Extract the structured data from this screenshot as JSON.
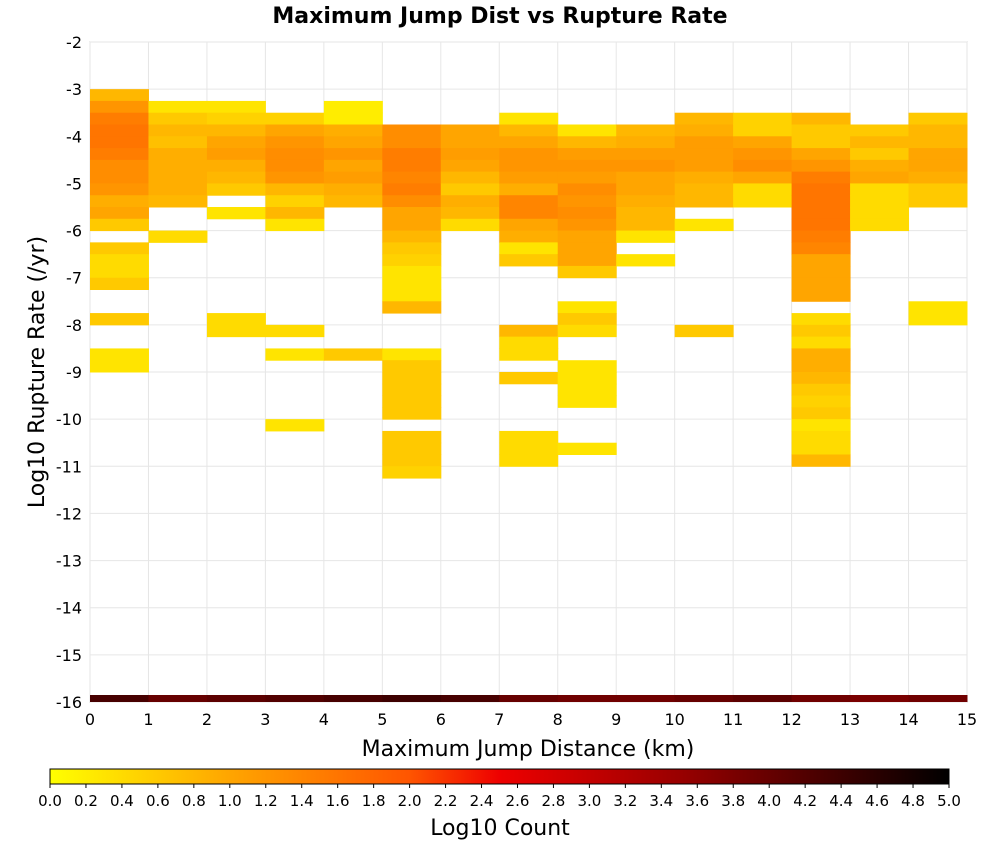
{
  "chart_data": {
    "type": "heatmap",
    "title": "Maximum Jump Dist vs Rupture Rate",
    "xlabel": "Maximum Jump Distance (km)",
    "ylabel": "Log10 Rupture Rate (/yr)",
    "xlim": [
      0,
      15
    ],
    "ylim": [
      -16,
      -2
    ],
    "x_ticks": [
      "0",
      "1",
      "2",
      "3",
      "4",
      "5",
      "6",
      "7",
      "8",
      "9",
      "10",
      "11",
      "12",
      "13",
      "14",
      "15"
    ],
    "y_ticks": [
      "-2",
      "-3",
      "-4",
      "-5",
      "-6",
      "-7",
      "-8",
      "-9",
      "-10",
      "-11",
      "-12",
      "-13",
      "-14",
      "-15",
      "-16"
    ],
    "grid": true,
    "bin_width_x": 1,
    "bin_height_y": 0.25,
    "colorbar": {
      "label": "Log10 Count",
      "range": [
        0,
        5
      ],
      "ticks": [
        "0.0",
        "0.2",
        "0.4",
        "0.6",
        "0.8",
        "1.0",
        "1.2",
        "1.4",
        "1.6",
        "1.8",
        "2.0",
        "2.2",
        "2.4",
        "2.6",
        "2.8",
        "3.0",
        "3.2",
        "3.4",
        "3.6",
        "3.8",
        "4.0",
        "4.2",
        "4.4",
        "4.6",
        "4.8",
        "5.0"
      ],
      "colors": [
        "#ffff00",
        "#ffa500",
        "#ff6600",
        "#ee0000",
        "#990000",
        "#000000"
      ]
    },
    "columns": [
      {
        "x": 0,
        "y_start": -3.0,
        "values": [
          0.8,
          1.2,
          1.5,
          1.6,
          1.6,
          1.5,
          1.3,
          1.3,
          1.2,
          0.9,
          1.0,
          0.6,
          null,
          0.6,
          0.4,
          0.4,
          0.6,
          null,
          null,
          0.6,
          null,
          null,
          0.3,
          0.3
        ]
      },
      {
        "x": 1,
        "y_start": -3.25,
        "values": [
          0.3,
          0.6,
          0.8,
          0.7,
          0.9,
          0.9,
          0.9,
          0.9,
          0.8,
          null,
          null,
          0.4
        ]
      },
      {
        "x": 2,
        "y_start": -3.25,
        "values": [
          0.3,
          0.5,
          0.8,
          1.0,
          1.1,
          0.9,
          0.8,
          0.6,
          null,
          0.3,
          null,
          null,
          null,
          null,
          null,
          null,
          null,
          null,
          0.4,
          0.4
        ]
      },
      {
        "x": 3,
        "y_start": -3.5,
        "values": [
          0.5,
          1.0,
          1.2,
          1.3,
          1.3,
          1.2,
          0.8,
          0.5,
          0.8,
          0.3,
          null,
          null,
          null,
          null,
          null,
          null,
          null,
          null,
          0.4,
          null,
          0.3,
          null,
          null,
          null,
          null,
          null,
          0.3
        ]
      },
      {
        "x": 4,
        "y_start": -3.25,
        "values": [
          0.2,
          0.2,
          0.9,
          1.0,
          1.2,
          1.0,
          1.1,
          0.9,
          0.8,
          null,
          null,
          null,
          null,
          null,
          null,
          null,
          null,
          null,
          null,
          null,
          null,
          0.6
        ]
      },
      {
        "x": 5,
        "y_start": -3.75,
        "values": [
          1.3,
          1.3,
          1.5,
          1.5,
          1.4,
          1.5,
          1.3,
          1.0,
          1.0,
          0.8,
          0.6,
          0.5,
          0.3,
          0.3,
          0.3,
          0.8,
          null,
          null,
          null,
          0.3,
          0.6,
          0.6,
          0.6,
          0.6,
          0.6,
          null,
          0.6,
          0.6,
          0.6,
          0.5
        ]
      },
      {
        "x": 6,
        "y_start": -3.75,
        "values": [
          1.0,
          1.0,
          1.1,
          1.0,
          0.8,
          0.6,
          0.9,
          0.8,
          0.4
        ]
      },
      {
        "x": 7,
        "y_start": -3.5,
        "values": [
          0.3,
          0.8,
          1.0,
          1.2,
          1.2,
          1.1,
          0.9,
          1.4,
          1.4,
          1.0,
          0.9,
          0.3,
          0.6,
          null,
          null,
          null,
          null,
          null,
          0.8,
          0.4,
          0.4,
          null,
          0.6,
          null,
          null,
          null,
          null,
          0.4,
          0.4,
          0.4
        ]
      },
      {
        "x": 8,
        "y_start": -3.75,
        "values": [
          0.3,
          0.8,
          1.1,
          1.2,
          1.1,
          1.3,
          1.2,
          1.3,
          1.2,
          1.0,
          1.0,
          1.0,
          0.6,
          null,
          null,
          0.3,
          0.6,
          0.4,
          null,
          null,
          0.3,
          0.3,
          0.3,
          0.3,
          null,
          null,
          null,
          0.3
        ]
      },
      {
        "x": 9,
        "y_start": -3.75,
        "values": [
          0.8,
          0.9,
          1.1,
          1.2,
          1.0,
          1.0,
          0.9,
          0.8,
          0.8,
          0.3,
          null,
          0.3
        ]
      },
      {
        "x": 10,
        "y_start": -3.5,
        "values": [
          0.8,
          0.9,
          1.1,
          1.1,
          1.1,
          0.9,
          0.8,
          0.8,
          null,
          0.3,
          null,
          null,
          null,
          null,
          null,
          null,
          null,
          null,
          0.6
        ]
      },
      {
        "x": 11,
        "y_start": -3.5,
        "values": [
          0.5,
          0.5,
          1.0,
          1.2,
          1.3,
          1.0,
          0.4,
          0.4
        ]
      },
      {
        "x": 12,
        "y_start": -3.5,
        "values": [
          0.8,
          0.6,
          0.6,
          1.0,
          1.2,
          1.5,
          1.6,
          1.6,
          1.6,
          1.6,
          1.5,
          1.4,
          1.0,
          1.0,
          1.0,
          1.0,
          null,
          0.4,
          0.6,
          0.4,
          0.9,
          0.9,
          0.8,
          0.6,
          0.5,
          0.6,
          0.3,
          0.4,
          0.4,
          0.8
        ]
      },
      {
        "x": 13,
        "y_start": -3.75,
        "values": [
          0.6,
          0.8,
          0.6,
          0.9,
          1.0,
          0.4,
          0.4,
          0.4,
          0.4
        ]
      },
      {
        "x": 14,
        "y_start": -3.5,
        "values": [
          0.6,
          0.8,
          0.8,
          1.0,
          1.0,
          0.9,
          0.6,
          0.6,
          null,
          null,
          null,
          null,
          null,
          null,
          null,
          null,
          0.3,
          0.3
        ]
      }
    ],
    "bottom_row": {
      "y": -16,
      "values": [
        4.3,
        4.0,
        4.1,
        4.2,
        4.3,
        4.4,
        4.3,
        4.0,
        3.9,
        3.9,
        4.0,
        4.1,
        3.9,
        3.8,
        3.9
      ]
    }
  }
}
